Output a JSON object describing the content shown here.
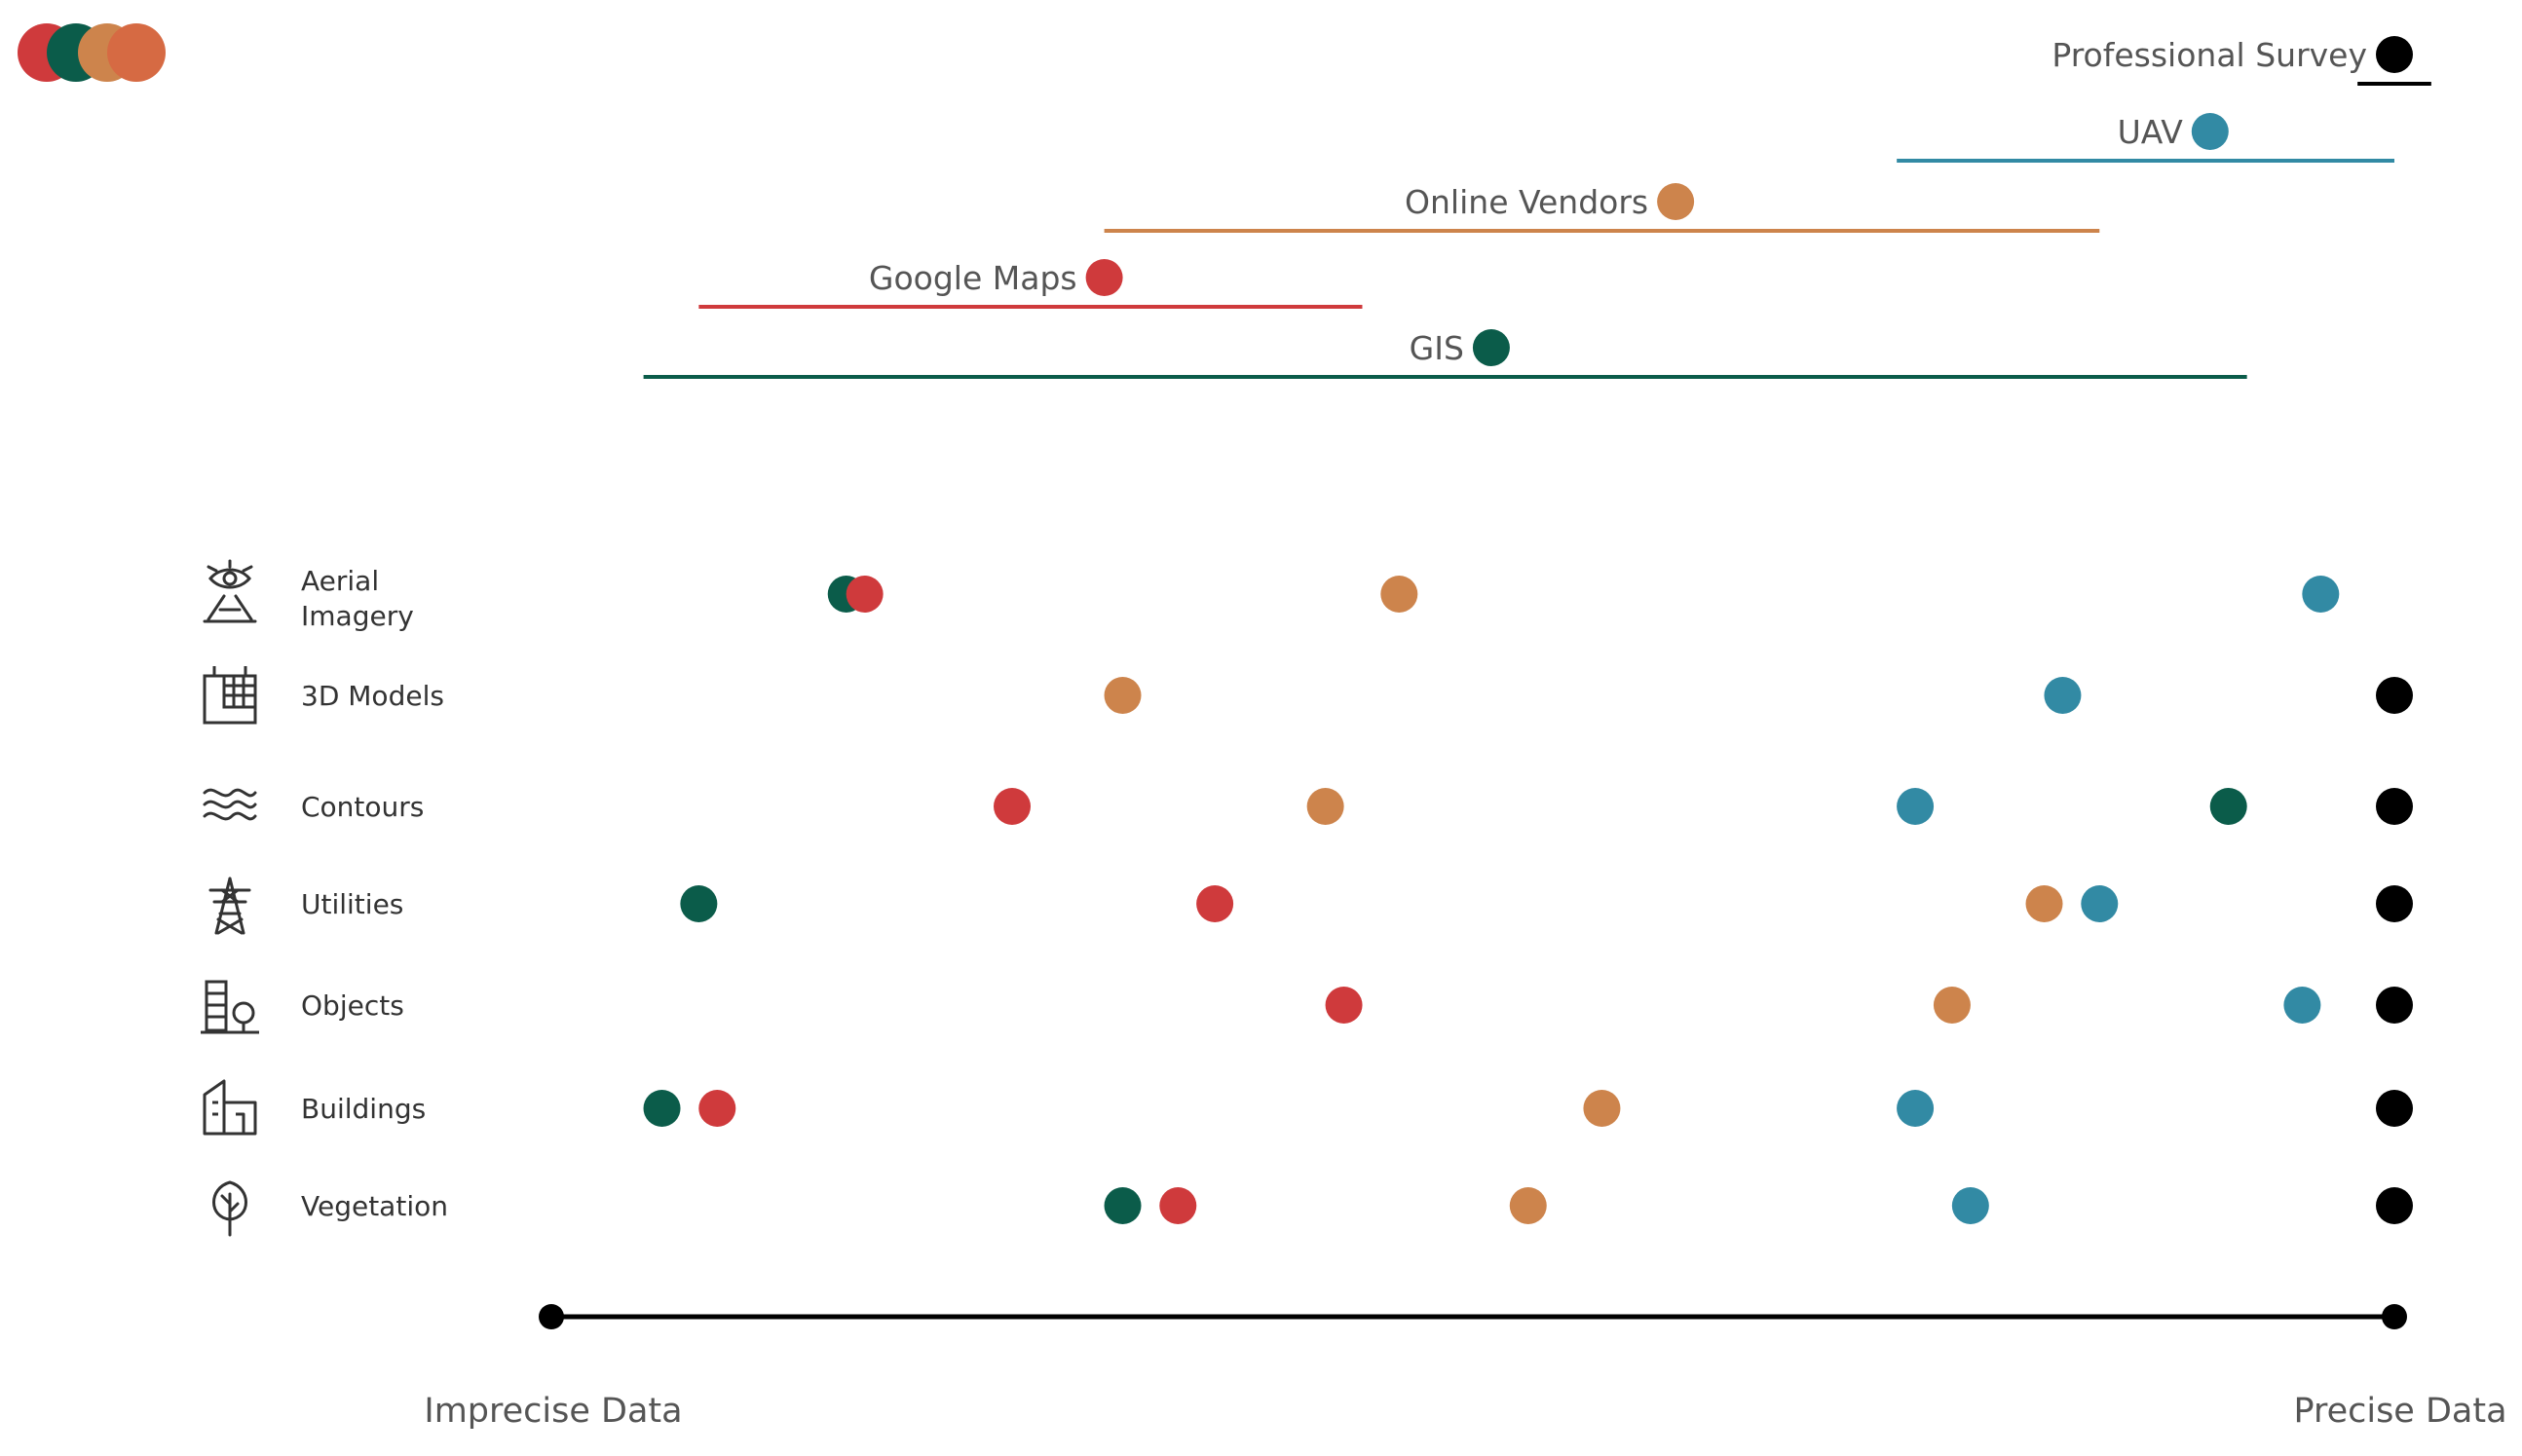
{
  "chart_data": {
    "type": "scatter",
    "title": "",
    "xlabel": "",
    "ylabel": "",
    "axis": {
      "min_label": "Imprecise Data",
      "max_label": "Precise Data",
      "xlim": [
        0,
        100
      ]
    },
    "series": [
      {
        "key": "gis",
        "name": "GIS",
        "color": "#0b5c4a",
        "range": [
          5,
          92
        ],
        "marker": 51
      },
      {
        "key": "google",
        "name": "Google Maps",
        "color": "#cf3a3c",
        "range": [
          8,
          44
        ],
        "marker": 30
      },
      {
        "key": "vendors",
        "name": "Online Vendors",
        "color": "#cd844c",
        "range": [
          30,
          84
        ],
        "marker": 61
      },
      {
        "key": "uav",
        "name": "UAV",
        "color": "#328aa4",
        "range": [
          73,
          100
        ],
        "marker": 90
      },
      {
        "key": "survey",
        "name": "Professional Survey",
        "color": "#000000",
        "range": [
          98,
          102
        ],
        "marker": 100
      }
    ],
    "categories": [
      {
        "name": "Aerial\nImagery",
        "icon": "aerial-imagery-icon",
        "values": {
          "gis": 16,
          "google": 17,
          "vendors": 46,
          "uav": 96
        }
      },
      {
        "name": "3D Models",
        "icon": "3d-models-icon",
        "values": {
          "vendors": 31,
          "uav": 82,
          "survey": 100
        }
      },
      {
        "name": "Contours",
        "icon": "contours-icon",
        "values": {
          "google": 25,
          "vendors": 42,
          "uav": 74,
          "gis": 91,
          "survey": 100
        }
      },
      {
        "name": "Utilities",
        "icon": "utilities-icon",
        "values": {
          "gis": 8,
          "google": 36,
          "vendors": 81,
          "uav": 84,
          "survey": 100
        }
      },
      {
        "name": "Objects",
        "icon": "objects-icon",
        "values": {
          "google": 43,
          "vendors": 76,
          "uav": 95,
          "survey": 100
        }
      },
      {
        "name": "Buildings",
        "icon": "buildings-icon",
        "values": {
          "gis": 6,
          "google": 9,
          "vendors": 57,
          "uav": 74,
          "survey": 100
        }
      },
      {
        "name": "Vegetation",
        "icon": "vegetation-icon",
        "values": {
          "gis": 31,
          "google": 34,
          "vendors": 53,
          "uav": 77,
          "survey": 100
        }
      }
    ]
  }
}
